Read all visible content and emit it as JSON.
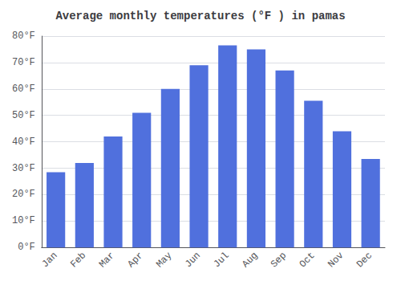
{
  "chart_data": {
    "type": "bar",
    "title": "Average monthly temperatures (°F ) in pamas",
    "categories": [
      "Jan",
      "Feb",
      "Mar",
      "Apr",
      "May",
      "Jun",
      "Jul",
      "Aug",
      "Sep",
      "Oct",
      "Nov",
      "Dec"
    ],
    "values": [
      28.5,
      32.0,
      42.0,
      51.0,
      60.0,
      69.0,
      76.5,
      75.0,
      67.0,
      55.5,
      44.0,
      33.5
    ],
    "ylim": [
      0,
      80
    ],
    "yticks": [
      {
        "value": 0,
        "label": "0°F"
      },
      {
        "value": 10,
        "label": "10°F"
      },
      {
        "value": 20,
        "label": "20°F"
      },
      {
        "value": 30,
        "label": "30°F"
      },
      {
        "value": 40,
        "label": "40°F"
      },
      {
        "value": 50,
        "label": "50°F"
      },
      {
        "value": 60,
        "label": "60°F"
      },
      {
        "value": 70,
        "label": "70°F"
      },
      {
        "value": 80,
        "label": "80°F"
      }
    ],
    "grid": true
  }
}
